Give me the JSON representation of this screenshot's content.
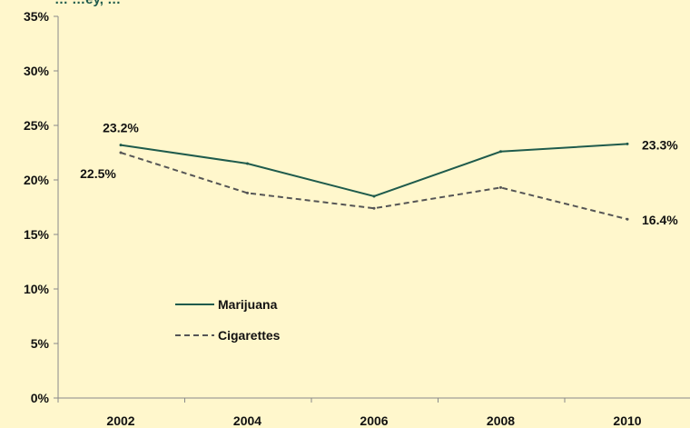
{
  "chart_data": {
    "type": "line",
    "title": "… …ey, …",
    "x": [
      "2002",
      "2004",
      "2006",
      "2008",
      "2010"
    ],
    "yticks": [
      "0%",
      "5%",
      "10%",
      "15%",
      "20%",
      "25%",
      "30%",
      "35%"
    ],
    "ylim": [
      0,
      35
    ],
    "grid": false,
    "legend_position": "lower-left",
    "series": [
      {
        "name": "Marijuana",
        "values": [
          23.2,
          21.5,
          18.5,
          22.6,
          23.3
        ],
        "color": "#1f5b4c",
        "style": "solid"
      },
      {
        "name": "Cigarettes",
        "values": [
          22.5,
          18.8,
          17.4,
          19.3,
          16.4
        ],
        "color": "#555555",
        "style": "dashed"
      }
    ],
    "annotations": [
      {
        "series": 0,
        "index": 0,
        "text": "23.2%"
      },
      {
        "series": 1,
        "index": 0,
        "text": "22.5%"
      },
      {
        "series": 0,
        "index": 4,
        "text": "23.3%"
      },
      {
        "series": 1,
        "index": 4,
        "text": "16.4%"
      }
    ]
  },
  "colors": {
    "background": "#fff7cc",
    "axis": "#8a8a8a",
    "title": "#1f5b4c"
  }
}
